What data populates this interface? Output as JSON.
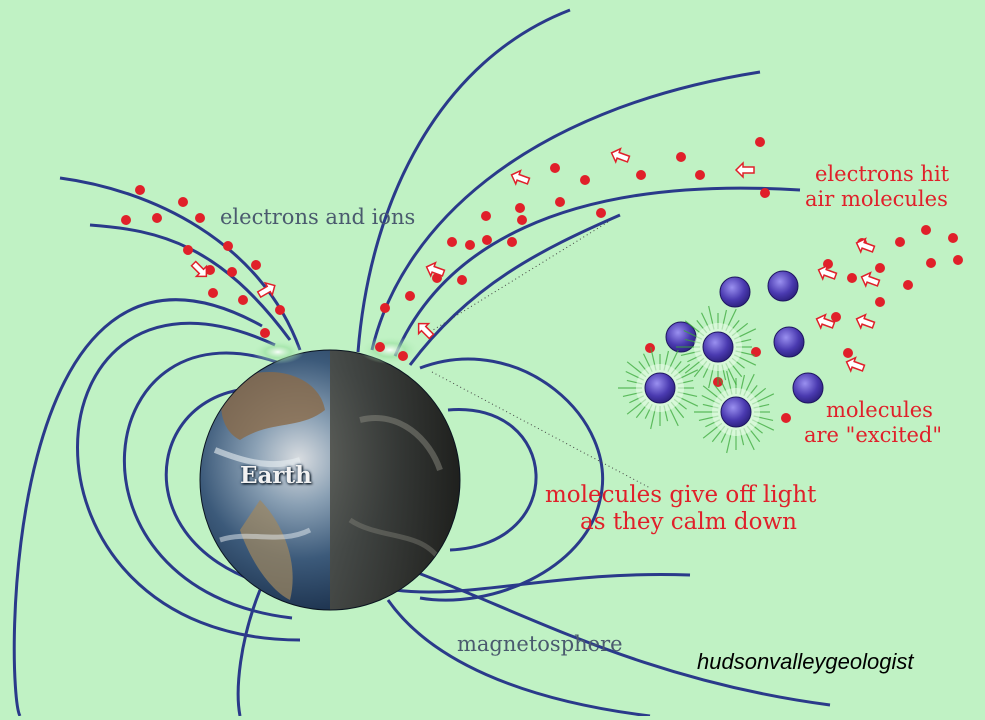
{
  "labels": {
    "electrons_ions": "electrons and ions",
    "electrons_hit_line1": "electrons hit",
    "electrons_hit_line2": "air molecules",
    "molecules_excited_line1": "molecules",
    "molecules_excited_line2": "are \"excited\"",
    "give_off_line1": "molecules give off light",
    "give_off_line2": "as they calm down",
    "earth": "Earth",
    "magnetosphere": "magnetosphere",
    "credit": "hudsonvalleygeologist"
  },
  "colors": {
    "background": "#c0f2c4",
    "field_line": "#2a3a8a",
    "particle": "#e0202a",
    "molecule": "#5548b8",
    "glow": "#3aa83a",
    "label_gray": "#4a5a6e",
    "label_red": "#e0202a"
  }
}
